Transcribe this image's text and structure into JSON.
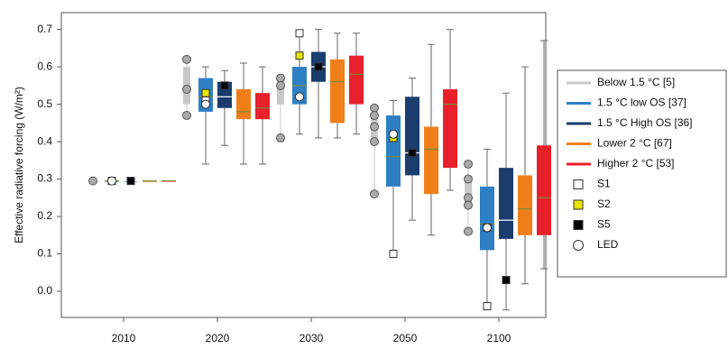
{
  "chart_data": {
    "type": "box",
    "ylabel": "Effective radiative forcing (W/m²)",
    "categories": [
      "2010",
      "2020",
      "2030",
      "2050",
      "2100"
    ],
    "ylim": [
      -0.07,
      0.745
    ],
    "yticks": [
      {
        "value": 0,
        "label": "0.0"
      },
      0.1,
      0.2,
      0.3,
      0.4,
      0.5,
      0.6,
      0.7
    ],
    "series": [
      {
        "name": "Below 1.5 °C [5]",
        "color": "#c8c8c8",
        "values": [
          [
            0.295,
            0.295,
            0.295,
            0.295,
            0.295
          ],
          [
            0.47,
            0.5,
            0.54,
            0.6,
            0.62
          ],
          [
            0.41,
            0.5,
            0.55,
            0.57,
            0.57
          ],
          [
            0.26,
            0.4,
            0.44,
            0.47,
            0.49
          ],
          [
            0.16,
            0.23,
            0.25,
            0.3,
            0.34
          ]
        ],
        "points": [
          [
            0.295
          ],
          [
            0.62,
            0.54,
            0.47
          ],
          [
            0.57,
            0.55,
            0.41
          ],
          [
            0.49,
            0.47,
            0.44,
            0.4,
            0.26
          ],
          [
            0.34,
            0.3,
            0.25,
            0.23,
            0.16
          ]
        ]
      },
      {
        "name": "1.5 °C low OS [37]",
        "color": "#2e7fc4",
        "values": [
          [
            0.295,
            0.295,
            0.295,
            0.295,
            0.295
          ],
          [
            0.34,
            0.48,
            0.52,
            0.57,
            0.6
          ],
          [
            0.42,
            0.5,
            0.55,
            0.6,
            0.69
          ],
          [
            0.1,
            0.28,
            0.36,
            0.47,
            0.51
          ],
          [
            -0.04,
            0.11,
            0.18,
            0.28,
            0.38
          ]
        ]
      },
      {
        "name": "1.5 °C High OS [36]",
        "color": "#1a3d6e",
        "values": [
          [
            0.295,
            0.295,
            0.295,
            0.295,
            0.295
          ],
          [
            0.39,
            0.49,
            0.52,
            0.56,
            0.59
          ],
          [
            0.41,
            0.56,
            0.6,
            0.64,
            0.7
          ],
          [
            0.19,
            0.31,
            0.37,
            0.52,
            0.57
          ],
          [
            -0.05,
            0.14,
            0.19,
            0.33,
            0.53
          ]
        ]
      },
      {
        "name": "Lower  2 °C [67]",
        "color": "#f07f1a",
        "values": [
          [
            0.295,
            0.295,
            0.295,
            0.295,
            0.295
          ],
          [
            0.34,
            0.46,
            0.48,
            0.54,
            0.61
          ],
          [
            0.41,
            0.45,
            0.56,
            0.62,
            0.69
          ],
          [
            0.15,
            0.26,
            0.38,
            0.44,
            0.66
          ],
          [
            0.02,
            0.15,
            0.22,
            0.31,
            0.6
          ]
        ]
      },
      {
        "name": "Higher  2 °C [53]",
        "color": "#e8202a",
        "values": [
          [
            0.295,
            0.295,
            0.295,
            0.295,
            0.295
          ],
          [
            0.34,
            0.46,
            0.49,
            0.53,
            0.6
          ],
          [
            0.42,
            0.5,
            0.58,
            0.63,
            0.69
          ],
          [
            0.27,
            0.33,
            0.5,
            0.54,
            0.7
          ],
          [
            0.06,
            0.15,
            0.25,
            0.39,
            0.67
          ]
        ]
      }
    ],
    "markers": [
      {
        "name": "S1",
        "shape": "square",
        "color": "#ffffff",
        "values": [
          0.295,
          0.51,
          0.69,
          0.1,
          -0.04
        ]
      },
      {
        "name": "S2",
        "shape": "square",
        "color": "#e6e600",
        "values": [
          null,
          0.53,
          0.63,
          0.41,
          0.17
        ]
      },
      {
        "name": "S5",
        "shape": "square",
        "color": "#000000",
        "values": [
          0.295,
          0.55,
          0.6,
          0.37,
          0.03
        ]
      },
      {
        "name": "LED",
        "shape": "circle",
        "color": "#ffffff",
        "values": [
          0.295,
          0.5,
          0.52,
          0.42,
          0.17
        ]
      }
    ]
  }
}
